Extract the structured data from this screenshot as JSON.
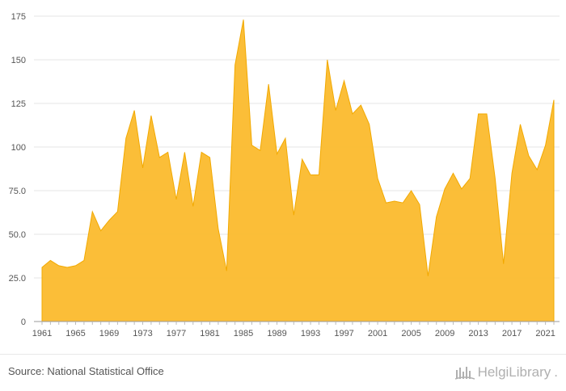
{
  "chart_data": {
    "type": "area",
    "x": [
      1961,
      1962,
      1963,
      1964,
      1965,
      1966,
      1967,
      1968,
      1969,
      1970,
      1971,
      1972,
      1973,
      1974,
      1975,
      1976,
      1977,
      1978,
      1979,
      1980,
      1981,
      1982,
      1983,
      1984,
      1985,
      1986,
      1987,
      1988,
      1989,
      1990,
      1991,
      1992,
      1993,
      1994,
      1995,
      1996,
      1997,
      1998,
      1999,
      2000,
      2001,
      2002,
      2003,
      2004,
      2005,
      2006,
      2007,
      2008,
      2009,
      2010,
      2011,
      2012,
      2013,
      2014,
      2015,
      2016,
      2017,
      2018,
      2019,
      2020,
      2021,
      2022
    ],
    "series": [
      {
        "values": [
          31,
          35,
          32,
          31,
          32,
          35,
          63,
          52,
          58,
          63,
          105,
          121,
          88,
          118,
          94,
          97,
          70,
          97,
          66,
          97,
          94,
          53,
          29,
          147,
          173,
          101,
          98,
          136,
          96,
          105,
          61,
          93,
          84,
          84,
          150,
          121,
          138,
          119,
          124,
          113,
          82,
          68,
          69,
          68,
          75,
          67,
          26,
          60,
          76,
          85,
          76,
          82,
          119,
          119,
          82,
          33,
          85,
          113,
          95,
          87,
          101,
          127
        ]
      }
    ],
    "x_ticks": [
      "1961",
      "1965",
      "1969",
      "1973",
      "1977",
      "1981",
      "1985",
      "1989",
      "1993",
      "1997",
      "2001",
      "2005",
      "2009",
      "2013",
      "2017",
      "2021"
    ],
    "y_ticks": [
      "0",
      "25.0",
      "50.0",
      "75.0",
      "100",
      "125",
      "150",
      "175"
    ],
    "ylim": [
      0,
      175
    ],
    "grid": true,
    "legend": "none",
    "color": "#FBBA2D"
  },
  "footer": {
    "source": "Source: National Statistical Office",
    "brand_name": "HelgiLibrary",
    "brand_dot": "."
  }
}
